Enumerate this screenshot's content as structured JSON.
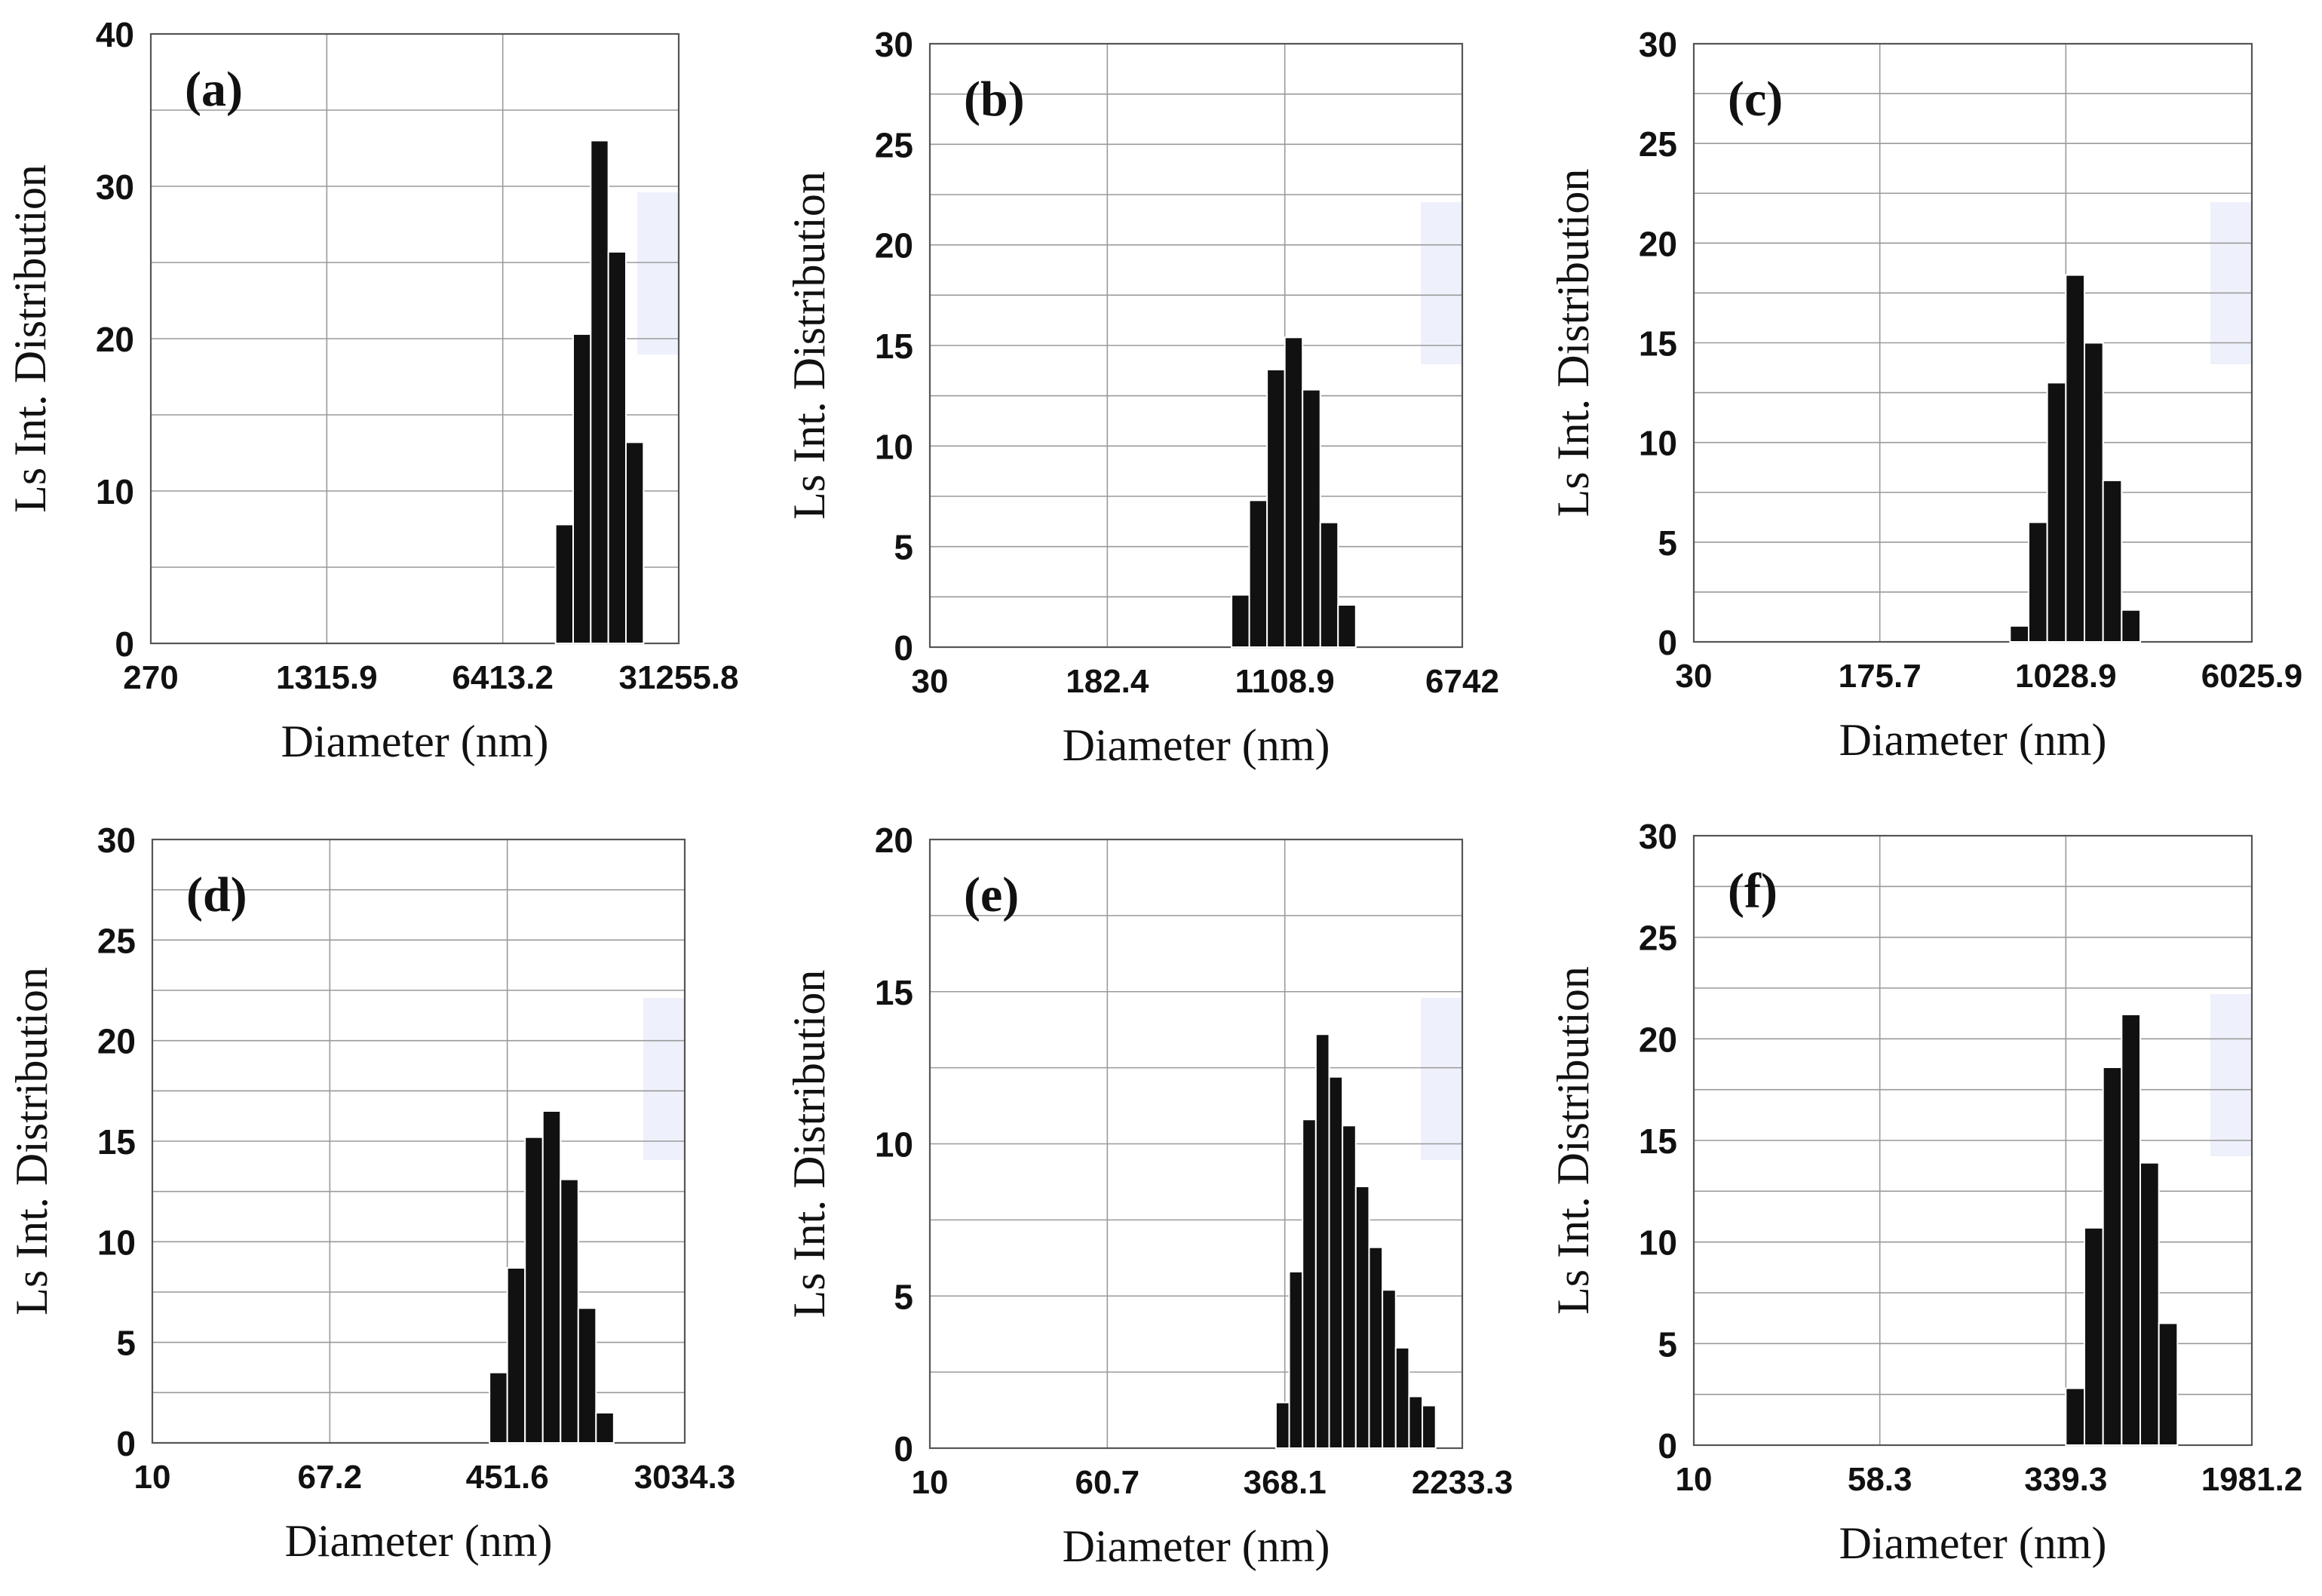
{
  "figure": {
    "panels": [
      "(a)",
      "(b)",
      "(c)",
      "(d)",
      "(e)",
      "(f)"
    ]
  },
  "colors": {
    "background": "#ffffff",
    "bar_fill": "#111111",
    "bar_edge": "#ffffff",
    "grid": "#9a9a9a",
    "axis": "#555555",
    "text": "#111111",
    "label_strip": "#eef1fb"
  },
  "chart_data": [
    {
      "type": "bar",
      "panel_label": "(a)",
      "xlabel": "Diameter (nm)",
      "ylabel": "Ls Int. Distribution",
      "ylim": [
        0,
        40
      ],
      "yticks": [
        0,
        10,
        20,
        30,
        40
      ],
      "xscale": "log",
      "xticks": [
        "270",
        "1315.9",
        "6413.2",
        "31255.8"
      ],
      "xlim_bins": [
        0,
        30
      ],
      "bins": [
        23,
        24,
        25,
        26,
        27,
        28
      ],
      "values": [
        7.8,
        20.3,
        33.0,
        25.7,
        13.2,
        0
      ]
    },
    {
      "type": "bar",
      "panel_label": "(b)",
      "xlabel": "Diameter (nm)",
      "ylabel": "Ls Int. Distribution",
      "ylim": [
        0,
        30
      ],
      "yticks": [
        0,
        5,
        10,
        15,
        20,
        25,
        30
      ],
      "xscale": "log",
      "xticks": [
        "30",
        "182.4",
        "1108.9",
        "6742"
      ],
      "xlim_bins": [
        0,
        30
      ],
      "bins": [
        17,
        18,
        19,
        20,
        21,
        22,
        23
      ],
      "values": [
        2.6,
        7.3,
        13.8,
        15.4,
        12.8,
        6.2,
        2.1
      ]
    },
    {
      "type": "bar",
      "panel_label": "(c)",
      "xlabel": "Diameter (nm)",
      "ylabel": "Ls Int. Distribution",
      "ylim": [
        0,
        30
      ],
      "yticks": [
        0,
        5,
        10,
        15,
        20,
        25,
        30
      ],
      "xscale": "log",
      "xticks": [
        "30",
        "175.7",
        "1028.9",
        "6025.9"
      ],
      "xlim_bins": [
        0,
        30
      ],
      "bins": [
        17,
        18,
        19,
        20,
        21,
        22,
        23
      ],
      "values": [
        0.8,
        6.0,
        13.0,
        18.4,
        15.0,
        8.1,
        1.6
      ]
    },
    {
      "type": "bar",
      "panel_label": "(d)",
      "xlabel": "Diameter (nm)",
      "ylabel": "Ls Int. Distribution",
      "ylim": [
        0,
        30
      ],
      "yticks": [
        0,
        5,
        10,
        15,
        20,
        25,
        30
      ],
      "xscale": "log",
      "xticks": [
        "10",
        "67.2",
        "451.6",
        "3034.3"
      ],
      "xlim_bins": [
        0,
        30
      ],
      "bins": [
        19,
        20,
        21,
        22,
        23,
        24,
        25
      ],
      "values": [
        3.5,
        8.7,
        15.2,
        16.5,
        13.1,
        6.7,
        1.5
      ]
    },
    {
      "type": "bar",
      "panel_label": "(e)",
      "xlabel": "Diameter (nm)",
      "ylabel": "Ls Int. Distribution",
      "ylim": [
        0,
        20
      ],
      "yticks": [
        0,
        5,
        10,
        15,
        20
      ],
      "xscale": "log",
      "xticks": [
        "10",
        "60.7",
        "368.1",
        "2233.3"
      ],
      "xlim_bins": [
        0,
        40
      ],
      "bins": [
        26,
        27,
        28,
        29,
        30,
        31,
        32,
        33,
        34,
        35,
        36,
        37
      ],
      "values": [
        1.5,
        5.8,
        10.8,
        13.6,
        12.2,
        10.6,
        8.6,
        6.6,
        5.2,
        3.3,
        1.7,
        1.4
      ]
    },
    {
      "type": "bar",
      "panel_label": "(f)",
      "xlabel": "Diameter (nm)",
      "ylabel": "Ls Int. Distribution",
      "ylim": [
        0,
        30
      ],
      "yticks": [
        0,
        5,
        10,
        15,
        20,
        25,
        30
      ],
      "xscale": "log",
      "xticks": [
        "10",
        "58.3",
        "339.3",
        "1981.2"
      ],
      "xlim_bins": [
        0,
        30
      ],
      "bins": [
        20,
        21,
        22,
        23,
        24,
        25
      ],
      "values": [
        2.8,
        10.7,
        18.6,
        21.2,
        13.9,
        6.0
      ]
    }
  ]
}
